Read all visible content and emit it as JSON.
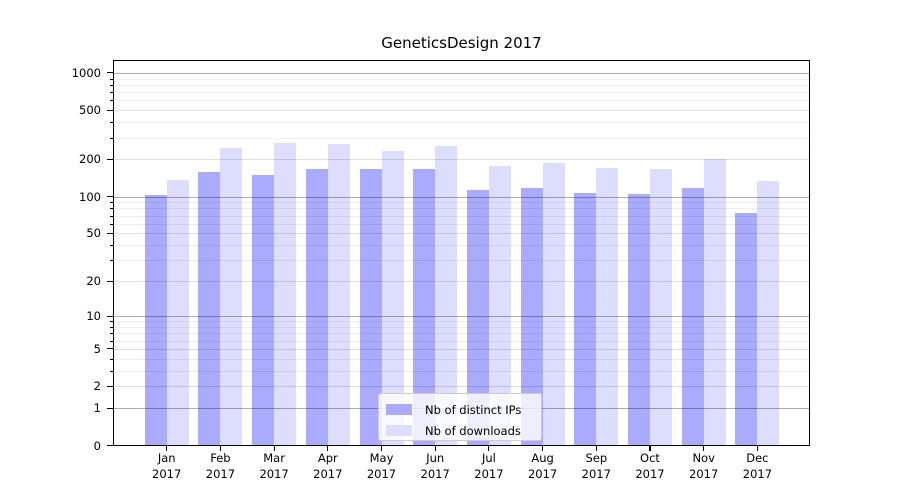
{
  "title": "GeneticsDesign 2017",
  "axis": {
    "y_tick_labels": [
      "0",
      "1",
      "2",
      "5",
      "10",
      "20",
      "50",
      "100",
      "200",
      "500",
      "1000"
    ],
    "y_tick_values": [
      0,
      1,
      2,
      5,
      10,
      20,
      50,
      100,
      200,
      500,
      1000
    ],
    "x_year_label": "2017"
  },
  "chart_data": {
    "type": "bar",
    "title": "GeneticsDesign 2017",
    "categories": [
      "Jan",
      "Feb",
      "Mar",
      "Apr",
      "May",
      "Jun",
      "Jul",
      "Aug",
      "Sep",
      "Oct",
      "Nov",
      "Dec"
    ],
    "year": "2017",
    "series": [
      {
        "name": "Nb of distinct IPs",
        "color": "#aaaaff",
        "values": [
          103,
          157,
          151,
          168,
          168,
          168,
          114,
          118,
          106,
          104,
          117,
          74
        ]
      },
      {
        "name": "Nb of downloads",
        "color": "#ddddff",
        "values": [
          137,
          246,
          272,
          267,
          235,
          259,
          176,
          186,
          171,
          168,
          201,
          133
        ]
      }
    ],
    "xlabel": "",
    "ylabel": "",
    "y_scale": "log10(value+1)",
    "ylim": [
      0,
      1265
    ],
    "grid": true,
    "grid_major_at": [
      1,
      10,
      100,
      1000
    ],
    "legend_position": "inside-bottom-center",
    "colors": {
      "distinct_ips": "#aaaaff",
      "downloads": "#ddddff",
      "grid_major": "#adadad",
      "grid_minor": "#e9e9e9"
    }
  }
}
